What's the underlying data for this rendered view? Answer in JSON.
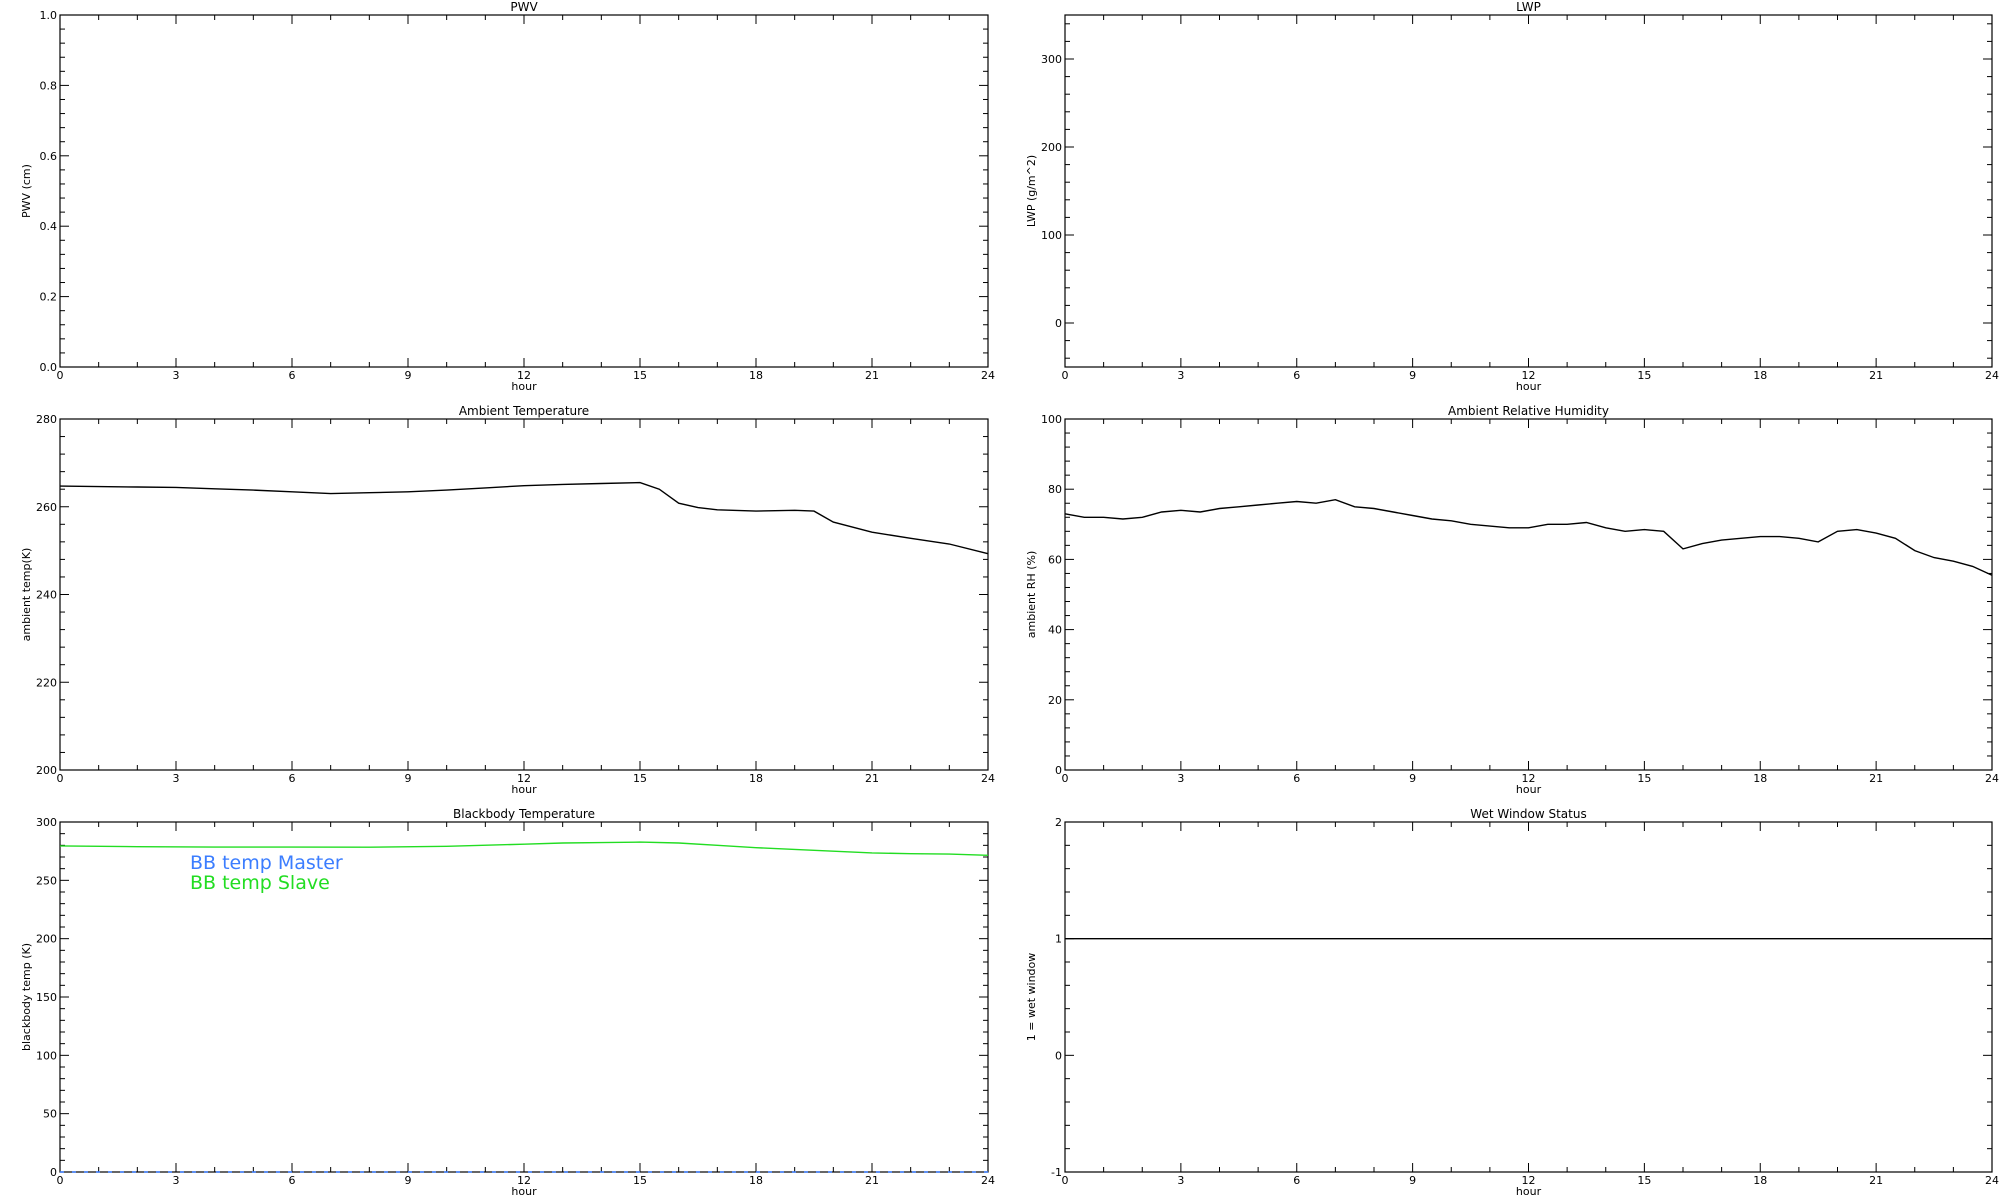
{
  "chart_data": [
    {
      "type": "line",
      "title": "PWV",
      "xlabel": "hour",
      "ylabel": "PWV (cm)",
      "xlim": [
        0,
        24
      ],
      "ylim": [
        0,
        1
      ],
      "xticks": [
        "0",
        "3",
        "6",
        "9",
        "12",
        "15",
        "18",
        "21",
        "24"
      ],
      "yticks": [
        "0.0",
        "0.2",
        "0.4",
        "0.6",
        "0.8",
        "1.0"
      ],
      "series": []
    },
    {
      "type": "line",
      "title": "LWP",
      "xlabel": "hour",
      "ylabel": "LWP (g/m^2)",
      "xlim": [
        0,
        24
      ],
      "ylim": [
        -50,
        350
      ],
      "xticks": [
        "0",
        "3",
        "6",
        "9",
        "12",
        "15",
        "18",
        "21",
        "24"
      ],
      "yticks": [
        "0",
        "100",
        "200",
        "300"
      ],
      "series": []
    },
    {
      "type": "line",
      "title": "Ambient Temperature",
      "xlabel": "hour",
      "ylabel": "ambient temp(K)",
      "xlim": [
        0,
        24
      ],
      "ylim": [
        200,
        280
      ],
      "xticks": [
        "0",
        "3",
        "6",
        "9",
        "12",
        "15",
        "18",
        "21",
        "24"
      ],
      "yticks": [
        "200",
        "220",
        "240",
        "260",
        "280"
      ],
      "series": [
        {
          "color": "#000000",
          "x": [
            0,
            1,
            2,
            3,
            4,
            5,
            6,
            7,
            8,
            9,
            10,
            11,
            12,
            13,
            14,
            15,
            15.5,
            16,
            16.5,
            17,
            18,
            19,
            19.5,
            20,
            21,
            22,
            23,
            24
          ],
          "y": [
            264.7,
            264.6,
            264.5,
            264.4,
            264.1,
            263.8,
            263.4,
            263.0,
            263.2,
            263.4,
            263.8,
            264.3,
            264.8,
            265.1,
            265.3,
            265.5,
            264.0,
            260.8,
            259.8,
            259.3,
            259.0,
            259.2,
            259.0,
            256.5,
            254.2,
            252.8,
            251.5,
            249.3
          ]
        }
      ]
    },
    {
      "type": "line",
      "title": "Ambient Relative Humidity",
      "xlabel": "hour",
      "ylabel": "ambient RH (%)",
      "xlim": [
        0,
        24
      ],
      "ylim": [
        0,
        100
      ],
      "xticks": [
        "0",
        "3",
        "6",
        "9",
        "12",
        "15",
        "18",
        "21",
        "24"
      ],
      "yticks": [
        "0",
        "20",
        "40",
        "60",
        "80",
        "100"
      ],
      "series": [
        {
          "color": "#000000",
          "x": [
            0,
            0.5,
            1,
            1.5,
            2,
            2.5,
            3,
            3.5,
            4,
            4.5,
            5,
            5.5,
            6,
            6.5,
            7,
            7.5,
            8,
            8.5,
            9,
            9.5,
            10,
            10.5,
            11,
            11.5,
            12,
            12.5,
            13,
            13.5,
            14,
            14.5,
            15,
            15.5,
            16,
            16.5,
            17,
            17.5,
            18,
            18.5,
            19,
            19.5,
            20,
            20.5,
            21,
            21.5,
            22,
            22.5,
            23,
            23.5,
            24
          ],
          "y": [
            73,
            72,
            72,
            71.5,
            72,
            73.5,
            74,
            73.5,
            74.5,
            75,
            75.5,
            76,
            76.5,
            76,
            77,
            75,
            74.5,
            73.5,
            72.5,
            71.5,
            71,
            70,
            69.5,
            69,
            69,
            70,
            70,
            70.5,
            69,
            68,
            68.5,
            68,
            63,
            64.5,
            65.5,
            66,
            66.5,
            66.5,
            66,
            65,
            68,
            68.5,
            67.5,
            66,
            62.5,
            60.5,
            59.5,
            58,
            55.5
          ]
        }
      ]
    },
    {
      "type": "line",
      "title": "Blackbody Temperature",
      "xlabel": "hour",
      "ylabel": "blackbody temp (K)",
      "xlim": [
        0,
        24
      ],
      "ylim": [
        0,
        300
      ],
      "xticks": [
        "0",
        "3",
        "6",
        "9",
        "12",
        "15",
        "18",
        "21",
        "24"
      ],
      "yticks": [
        "0",
        "50",
        "100",
        "150",
        "200",
        "250",
        "300"
      ],
      "legend": "upper-left",
      "series": [
        {
          "name": "BB temp Master",
          "color": "#3b7dff",
          "x": [
            0,
            24
          ],
          "y": [
            0,
            0
          ]
        },
        {
          "name": "BB temp Slave",
          "color": "#22dd22",
          "x": [
            0,
            2,
            4,
            6,
            8,
            10,
            12,
            13,
            14,
            15,
            16,
            17,
            18,
            19,
            20,
            21,
            22,
            23,
            24
          ],
          "y": [
            279.5,
            278.8,
            278.5,
            278.5,
            278.4,
            279.2,
            281.0,
            282.0,
            282.3,
            282.8,
            282.0,
            280.0,
            278.0,
            276.5,
            275.0,
            273.5,
            272.8,
            272.5,
            271.5
          ]
        }
      ]
    },
    {
      "type": "line",
      "title": "Wet Window Status",
      "xlabel": "hour",
      "ylabel": "1 = wet window",
      "xlim": [
        0,
        24
      ],
      "ylim": [
        -1,
        2
      ],
      "xticks": [
        "0",
        "3",
        "6",
        "9",
        "12",
        "15",
        "18",
        "21",
        "24"
      ],
      "yticks": [
        "-1",
        "0",
        "1",
        "2"
      ],
      "series": [
        {
          "color": "#000000",
          "x": [
            0,
            24
          ],
          "y": [
            1,
            1
          ]
        }
      ]
    }
  ]
}
